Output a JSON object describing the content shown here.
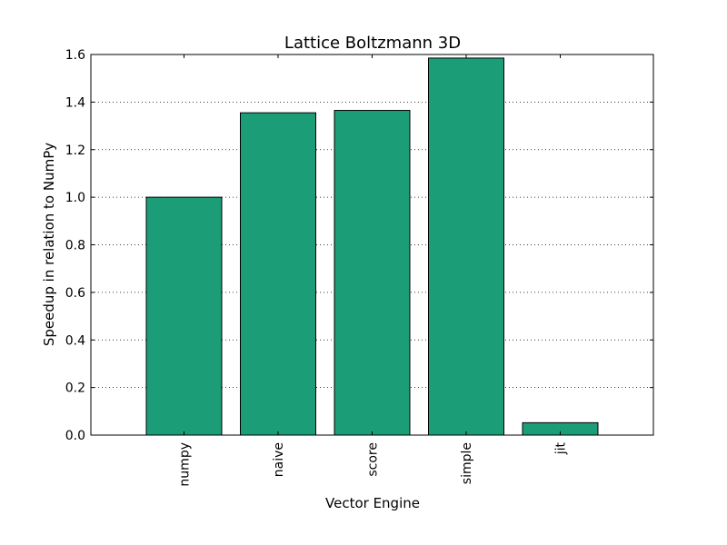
{
  "chart_data": {
    "type": "bar",
    "title": "Lattice Boltzmann 3D",
    "xlabel": "Vector Engine",
    "ylabel": "Speedup in relation to NumPy",
    "categories": [
      "numpy",
      "naive",
      "score",
      "simple",
      "jit"
    ],
    "values": [
      1.0,
      1.355,
      1.365,
      1.585,
      0.052
    ],
    "ylim": [
      0,
      1.6
    ],
    "yticks": [
      "0.0",
      "0.2",
      "0.4",
      "0.6",
      "0.8",
      "1.0",
      "1.2",
      "1.4",
      "1.6"
    ],
    "grid": "horizontal dotted",
    "bar_color": "#1b9e77"
  }
}
